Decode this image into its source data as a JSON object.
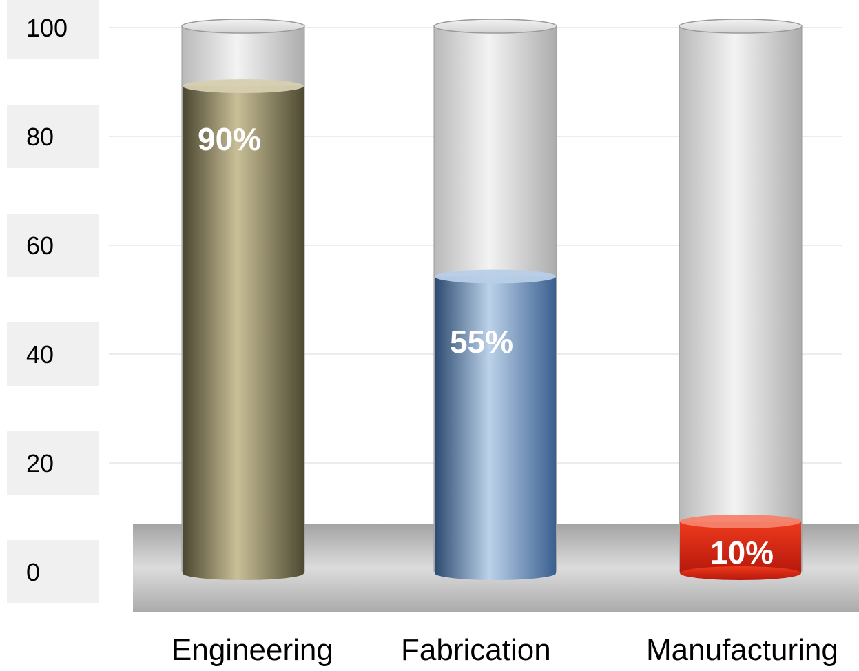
{
  "chart_data": {
    "type": "bar",
    "categories": [
      "Engineering",
      "Fabrication",
      "Manufacturing"
    ],
    "values": [
      90,
      55,
      10
    ],
    "data_labels": [
      "90%",
      "55%",
      "10%"
    ],
    "yticks": [
      "0",
      "20",
      "40",
      "60",
      "80",
      "100"
    ],
    "ylim": [
      0,
      100
    ],
    "grid": true,
    "colors": [
      "#8d8560",
      "#6f8fb8",
      "#e32b14"
    ]
  }
}
